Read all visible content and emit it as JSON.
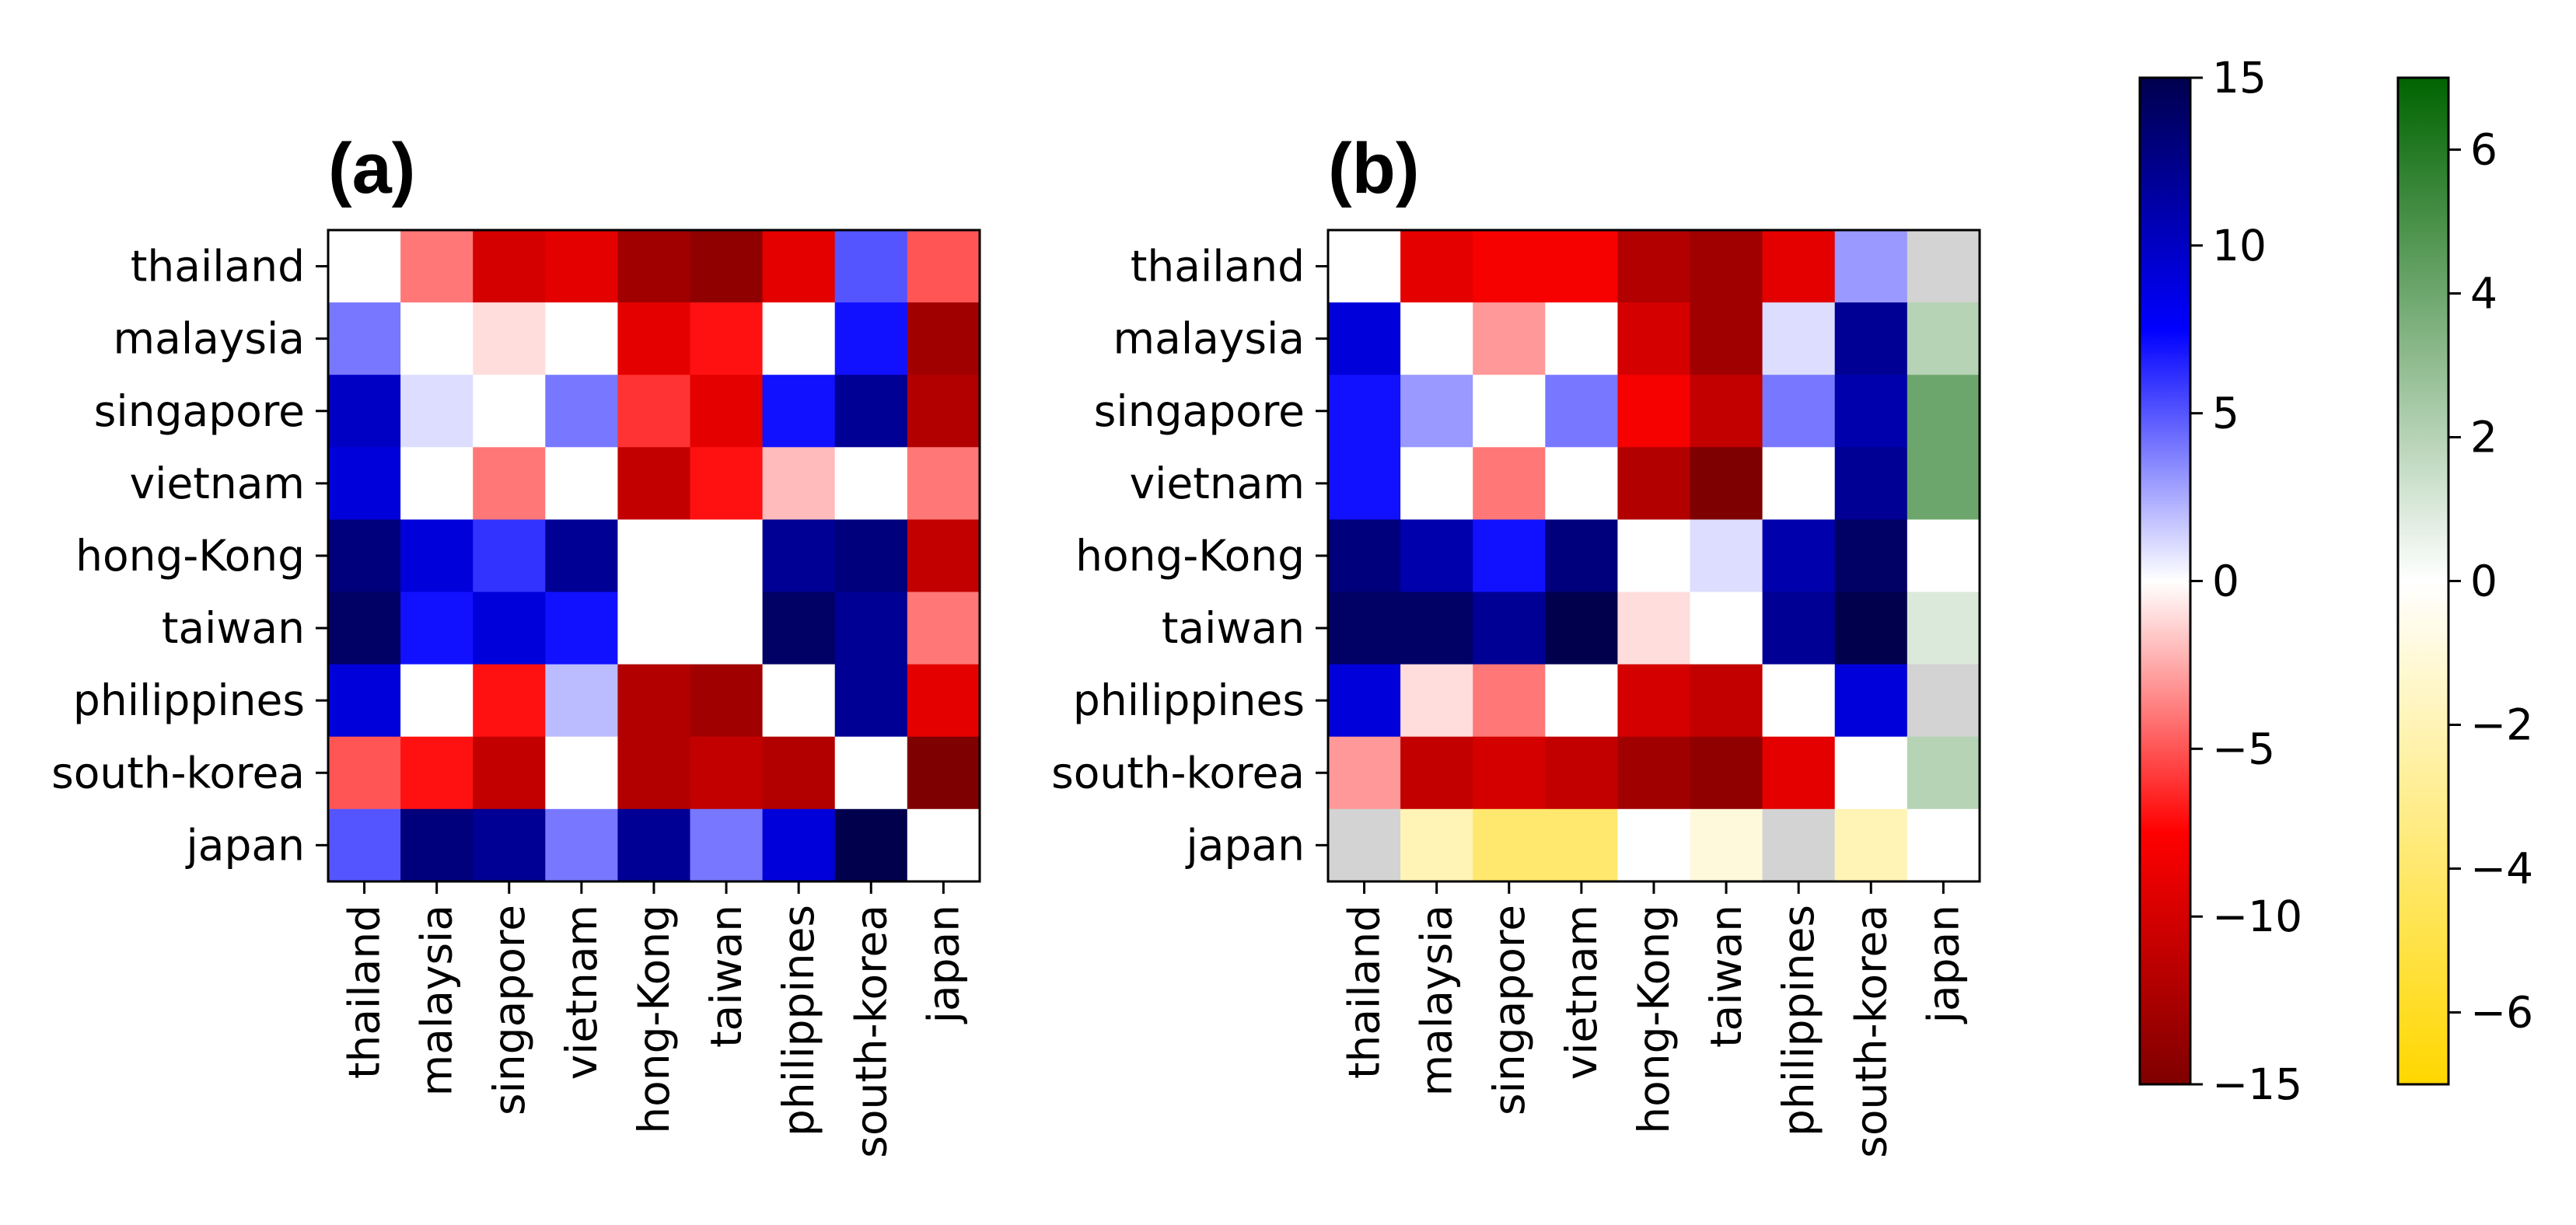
{
  "chart_data": [
    {
      "type": "heatmap",
      "title": "(a)",
      "rows": [
        "thailand",
        "malaysia",
        "singapore",
        "vietnam",
        "hong-Kong",
        "taiwan",
        "philippines",
        "south-korea",
        "japan"
      ],
      "cols": [
        "thailand",
        "malaysia",
        "singapore",
        "vietnam",
        "hong-Kong",
        "taiwan",
        "philippines",
        "south-korea",
        "japan"
      ],
      "values": [
        [
          0,
          -4,
          -10,
          -9,
          -13,
          -14,
          -9,
          5,
          -5
        ],
        [
          4,
          0,
          -1,
          0,
          -9,
          -7,
          0,
          7,
          -13
        ],
        [
          10,
          1,
          0,
          4,
          -6,
          -9,
          7,
          12,
          -12
        ],
        [
          9,
          0,
          -4,
          0,
          -11,
          -7,
          -2,
          0,
          -4
        ],
        [
          13,
          9,
          6,
          12,
          0,
          0,
          12,
          13,
          -11
        ],
        [
          14,
          7,
          9,
          7,
          0,
          0,
          14,
          12,
          -4
        ],
        [
          9,
          0,
          -7,
          2,
          -12,
          -13,
          0,
          12,
          -9
        ],
        [
          -5,
          -7,
          -11,
          0,
          -12,
          -11,
          -12,
          0,
          -15
        ],
        [
          5,
          13,
          12,
          4,
          12,
          4,
          9,
          15,
          0
        ]
      ],
      "colormap": "seismic_r",
      "vmin": -15,
      "vmax": 15
    },
    {
      "type": "heatmap",
      "title": "(b)",
      "rows": [
        "thailand",
        "malaysia",
        "singapore",
        "vietnam",
        "hong-Kong",
        "taiwan",
        "philippines",
        "south-korea",
        "japan"
      ],
      "cols": [
        "thailand",
        "malaysia",
        "singapore",
        "vietnam",
        "hong-Kong",
        "taiwan",
        "philippines",
        "south-korea",
        "japan"
      ],
      "values": [
        [
          0,
          -9,
          -8,
          -8,
          -12,
          -13,
          -9,
          3,
          null
        ],
        [
          9,
          0,
          -3,
          0,
          -10,
          -13,
          1,
          12,
          2
        ],
        [
          7,
          3,
          0,
          4,
          -8,
          -11,
          4,
          11,
          4
        ],
        [
          7,
          0,
          -4,
          0,
          -12,
          -15,
          0,
          12,
          4
        ],
        [
          13,
          11,
          7,
          13,
          0,
          1,
          11,
          14,
          0
        ],
        [
          14,
          14,
          12,
          15,
          -1,
          0,
          12,
          15,
          1
        ],
        [
          9,
          -1,
          -4,
          0,
          -10,
          -11,
          0,
          9,
          null
        ],
        [
          -3,
          -11,
          -10,
          -11,
          -13,
          -14,
          -9,
          0,
          2
        ],
        [
          null,
          -2,
          -4,
          -4,
          0,
          -1,
          null,
          -2,
          0
        ]
      ],
      "masked_color": "#d3d3d3",
      "colormap": "seismic_r (blue/red cells), Greens/yellow (japan row & column)",
      "vmin": -15,
      "vmax": 15
    }
  ],
  "colorbars": [
    {
      "name": "blue-red",
      "colors": [
        "#7f0000",
        "#ff0000",
        "#ffffff",
        "#0000ff",
        "#00004d"
      ],
      "vmin": -15,
      "vmax": 15,
      "ticks": [
        "15",
        "10",
        "5",
        "0",
        "−5",
        "−10",
        "−15"
      ]
    },
    {
      "name": "yellow-green",
      "colors": [
        "#ffd700",
        "#ffffff",
        "#006400"
      ],
      "vmin": -7,
      "vmax": 7,
      "ticks": [
        "6",
        "4",
        "2",
        "0",
        "−2",
        "−4",
        "−6"
      ]
    }
  ]
}
